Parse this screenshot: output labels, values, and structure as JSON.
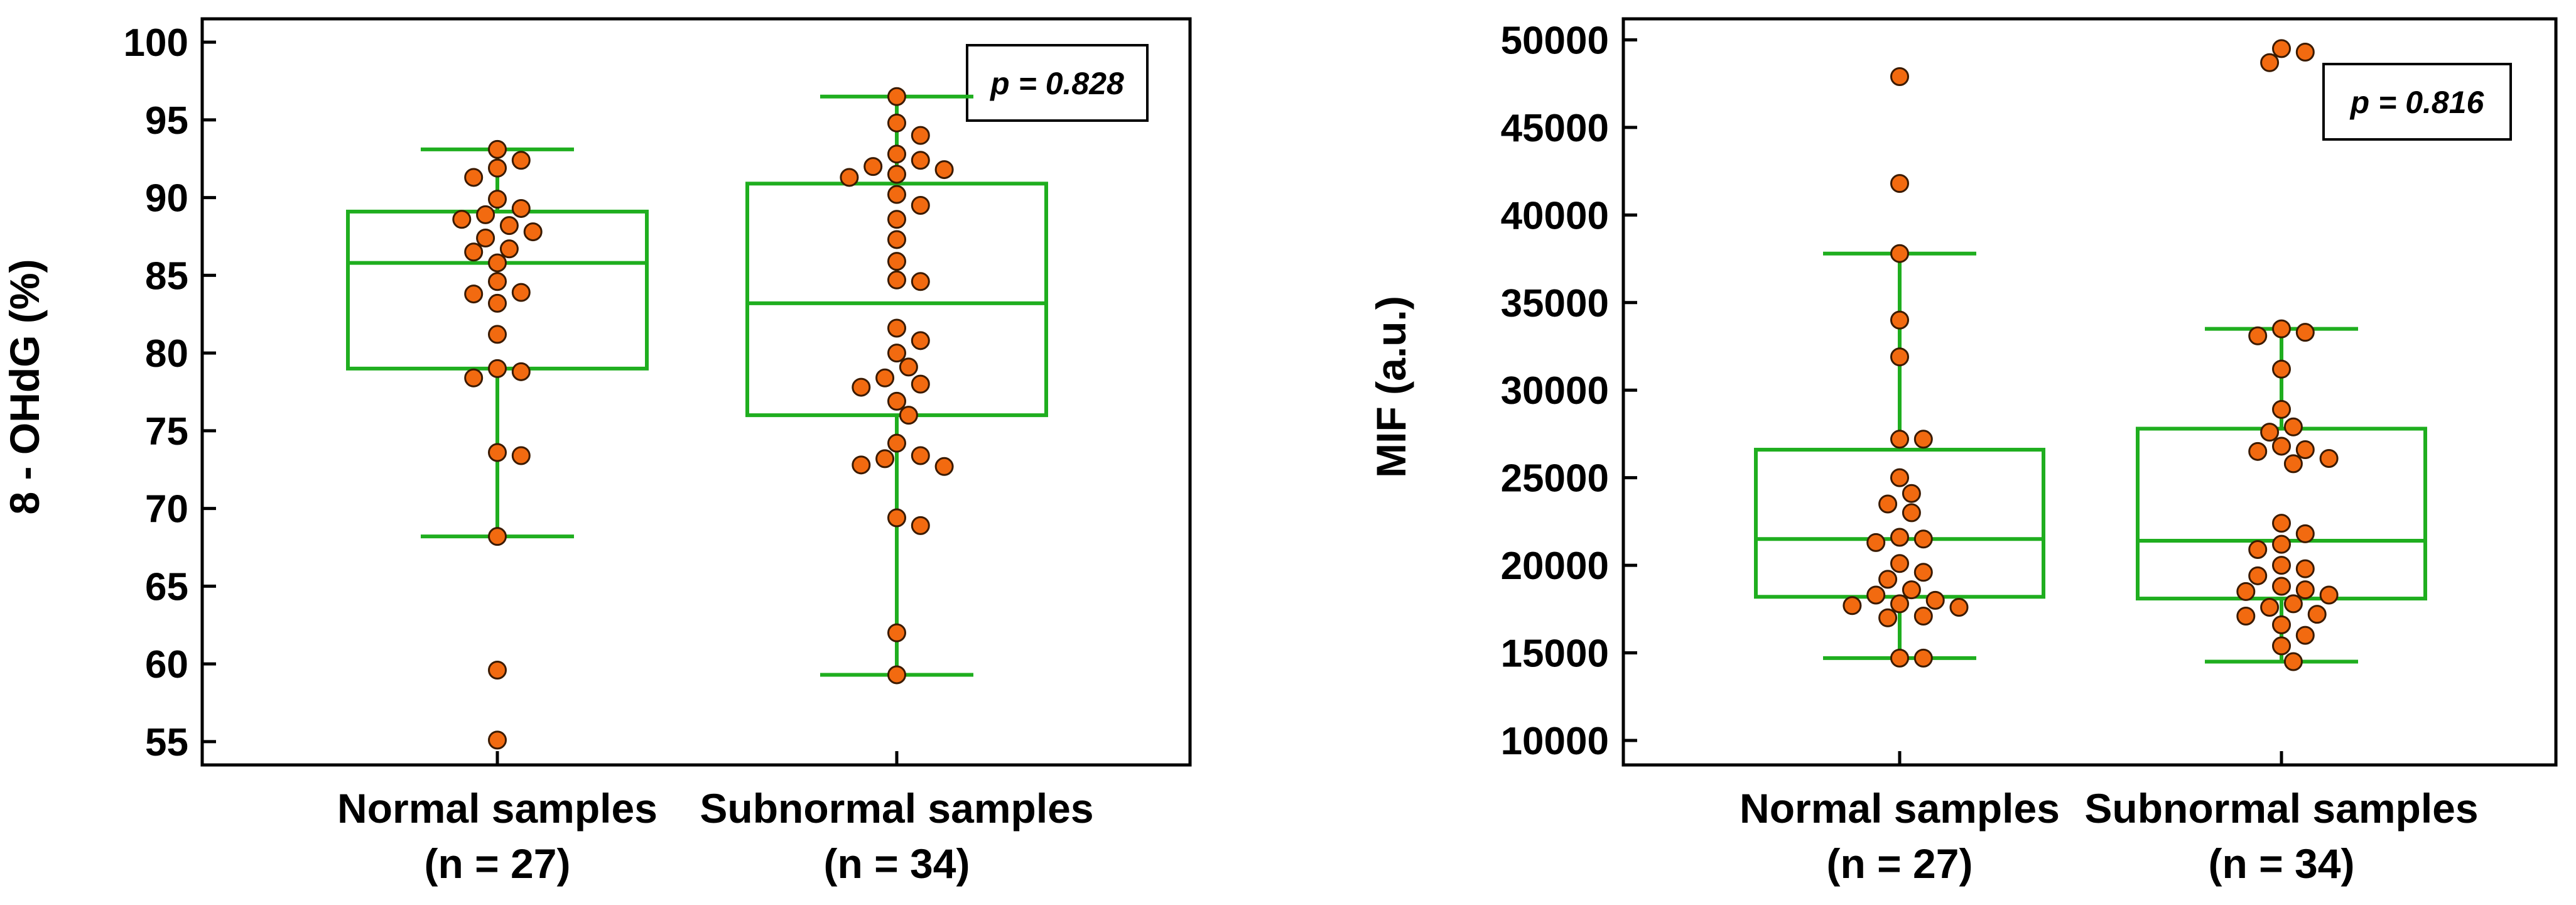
{
  "colors": {
    "box": "#1fae1f",
    "point_fill": "#f26a10",
    "point_stroke": "#3a1a00",
    "axis": "#000000"
  },
  "chart_data": [
    {
      "type": "box",
      "title": "",
      "xlabel": "",
      "ylabel": "8 - OHdG (%)",
      "ylim": [
        53.5,
        101.5
      ],
      "yticks": [
        "100",
        "95",
        "90",
        "85",
        "80",
        "75",
        "70",
        "65",
        "60",
        "55"
      ],
      "annotation": "p = 0.828",
      "groups": [
        {
          "name": "Normal samples",
          "n_label": "(n = 27)",
          "whisker_low": 68.2,
          "q1": 79.0,
          "median": 85.8,
          "q3": 89.1,
          "whisker_high": 93.1,
          "points": [
            93.1,
            92.4,
            91.9,
            91.3,
            89.9,
            89.3,
            88.9,
            88.6,
            87.8,
            87.4,
            86.7,
            86.5,
            85.8,
            84.6,
            83.9,
            83.8,
            83.2,
            81.2,
            79.0,
            78.8,
            78.4,
            73.6,
            73.4,
            68.2,
            59.6,
            55.1,
            88.2
          ]
        },
        {
          "name": "Subnormal samples",
          "n_label": "(n = 34)",
          "whisker_low": 59.3,
          "q1": 76.0,
          "median": 83.2,
          "q3": 90.9,
          "whisker_high": 96.5,
          "points": [
            96.5,
            94.8,
            94.0,
            92.8,
            92.4,
            92.0,
            91.8,
            91.5,
            91.3,
            90.2,
            89.5,
            88.6,
            87.3,
            85.9,
            84.7,
            84.6,
            81.6,
            80.8,
            80.0,
            79.1,
            78.4,
            78.0,
            77.8,
            76.9,
            76.0,
            74.2,
            73.4,
            73.2,
            72.8,
            72.7,
            69.4,
            68.9,
            62.0,
            59.3
          ]
        }
      ]
    },
    {
      "type": "box",
      "title": "",
      "xlabel": "",
      "ylabel": "MIF (a.u.)",
      "ylim": [
        8600,
        51200
      ],
      "yticks": [
        "50000",
        "45000",
        "40000",
        "35000",
        "30000",
        "25000",
        "20000",
        "15000",
        "10000"
      ],
      "annotation": "p = 0.816",
      "groups": [
        {
          "name": "Normal samples",
          "n_label": "(n = 27)",
          "whisker_low": 14700,
          "q1": 18200,
          "median": 21500,
          "q3": 26600,
          "whisker_high": 37800,
          "points": [
            47900,
            41800,
            37800,
            34000,
            31900,
            27200,
            27200,
            25000,
            24100,
            23500,
            23000,
            21600,
            21500,
            21300,
            20100,
            19600,
            19200,
            18600,
            18300,
            18000,
            17800,
            17700,
            17600,
            17100,
            17000,
            14700,
            14700
          ]
        },
        {
          "name": "Subnormal samples",
          "n_label": "(n = 34)",
          "whisker_low": 14500,
          "q1": 18100,
          "median": 21400,
          "q3": 27800,
          "whisker_high": 33500,
          "points": [
            49500,
            49300,
            48700,
            33500,
            33300,
            33100,
            31200,
            28900,
            27900,
            27600,
            26800,
            26600,
            26500,
            26100,
            25800,
            22400,
            21800,
            21200,
            20900,
            20000,
            19800,
            19400,
            18800,
            18600,
            18500,
            18300,
            17800,
            17600,
            17200,
            17100,
            16600,
            16000,
            15400,
            14500
          ]
        }
      ]
    }
  ]
}
